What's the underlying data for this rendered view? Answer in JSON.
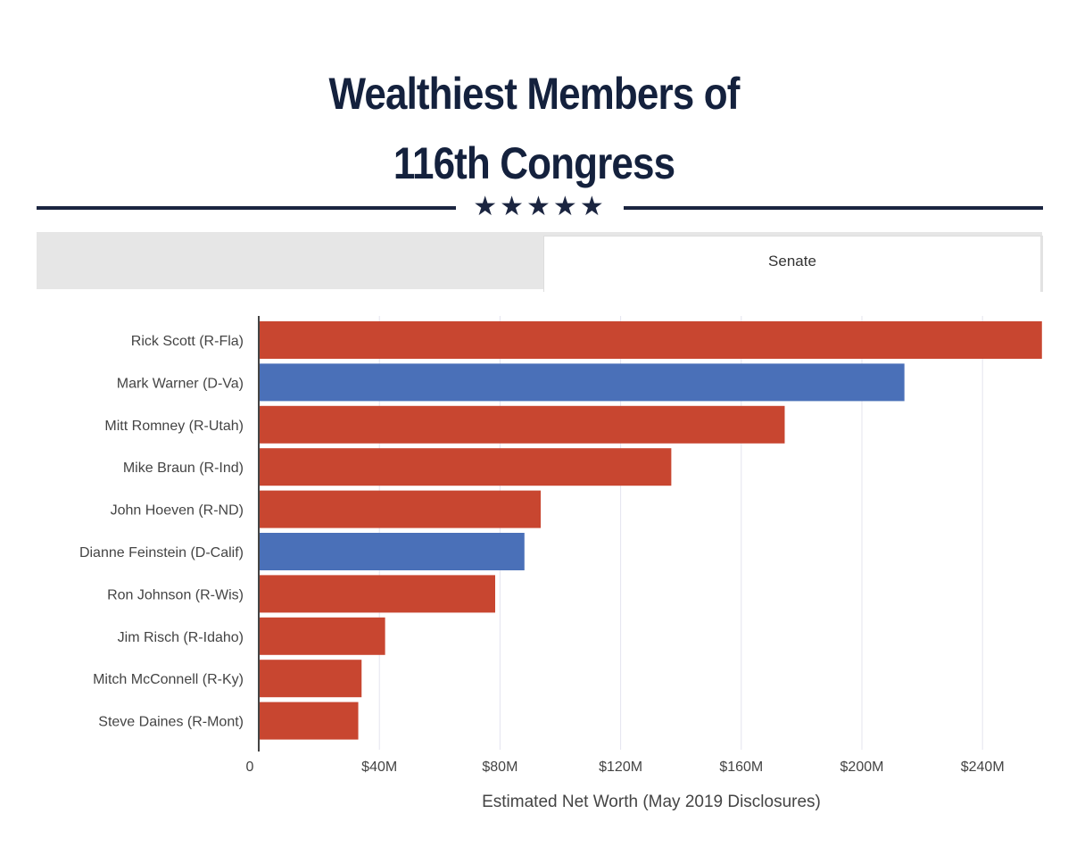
{
  "title": {
    "line1": "Wealthiest Members of",
    "line2": "116th Congress",
    "stars": "★★★★★"
  },
  "tabs": [
    {
      "label": ""
    },
    {
      "label": "Senate"
    }
  ],
  "colors": {
    "republican": "#c84630",
    "democrat": "#4a70b8",
    "title": "#14213d",
    "grid": "#e4e4ee"
  },
  "chart_data": {
    "type": "bar",
    "orientation": "horizontal",
    "xlabel": "Estimated Net Worth (May 2019 Disclosures)",
    "xlim": [
      0,
      260
    ],
    "xticks": [
      {
        "value": 0,
        "label": "0"
      },
      {
        "value": 40,
        "label": "$40M"
      },
      {
        "value": 80,
        "label": "$80M"
      },
      {
        "value": 120,
        "label": "$120M"
      },
      {
        "value": 160,
        "label": "$160M"
      },
      {
        "value": 200,
        "label": "$200M"
      },
      {
        "value": 240,
        "label": "$240M"
      }
    ],
    "categories": [
      "Rick Scott (R-Fla)",
      "Mark Warner (D-Va)",
      "Mitt Romney (R-Utah)",
      "Mike Braun (R-Ind)",
      "John Hoeven (R-ND)",
      "Dianne Feinstein (D-Calif)",
      "Ron Johnson (R-Wis)",
      "Jim Risch (R-Idaho)",
      "Mitch McConnell (R-Ky)",
      "Steve Daines (R-Mont)"
    ],
    "values": [
      259.7,
      214.1,
      174.4,
      136.8,
      93.5,
      88.1,
      78.4,
      41.9,
      34.1,
      33.0
    ],
    "party": [
      "R",
      "D",
      "R",
      "R",
      "R",
      "D",
      "R",
      "R",
      "R",
      "R"
    ]
  }
}
